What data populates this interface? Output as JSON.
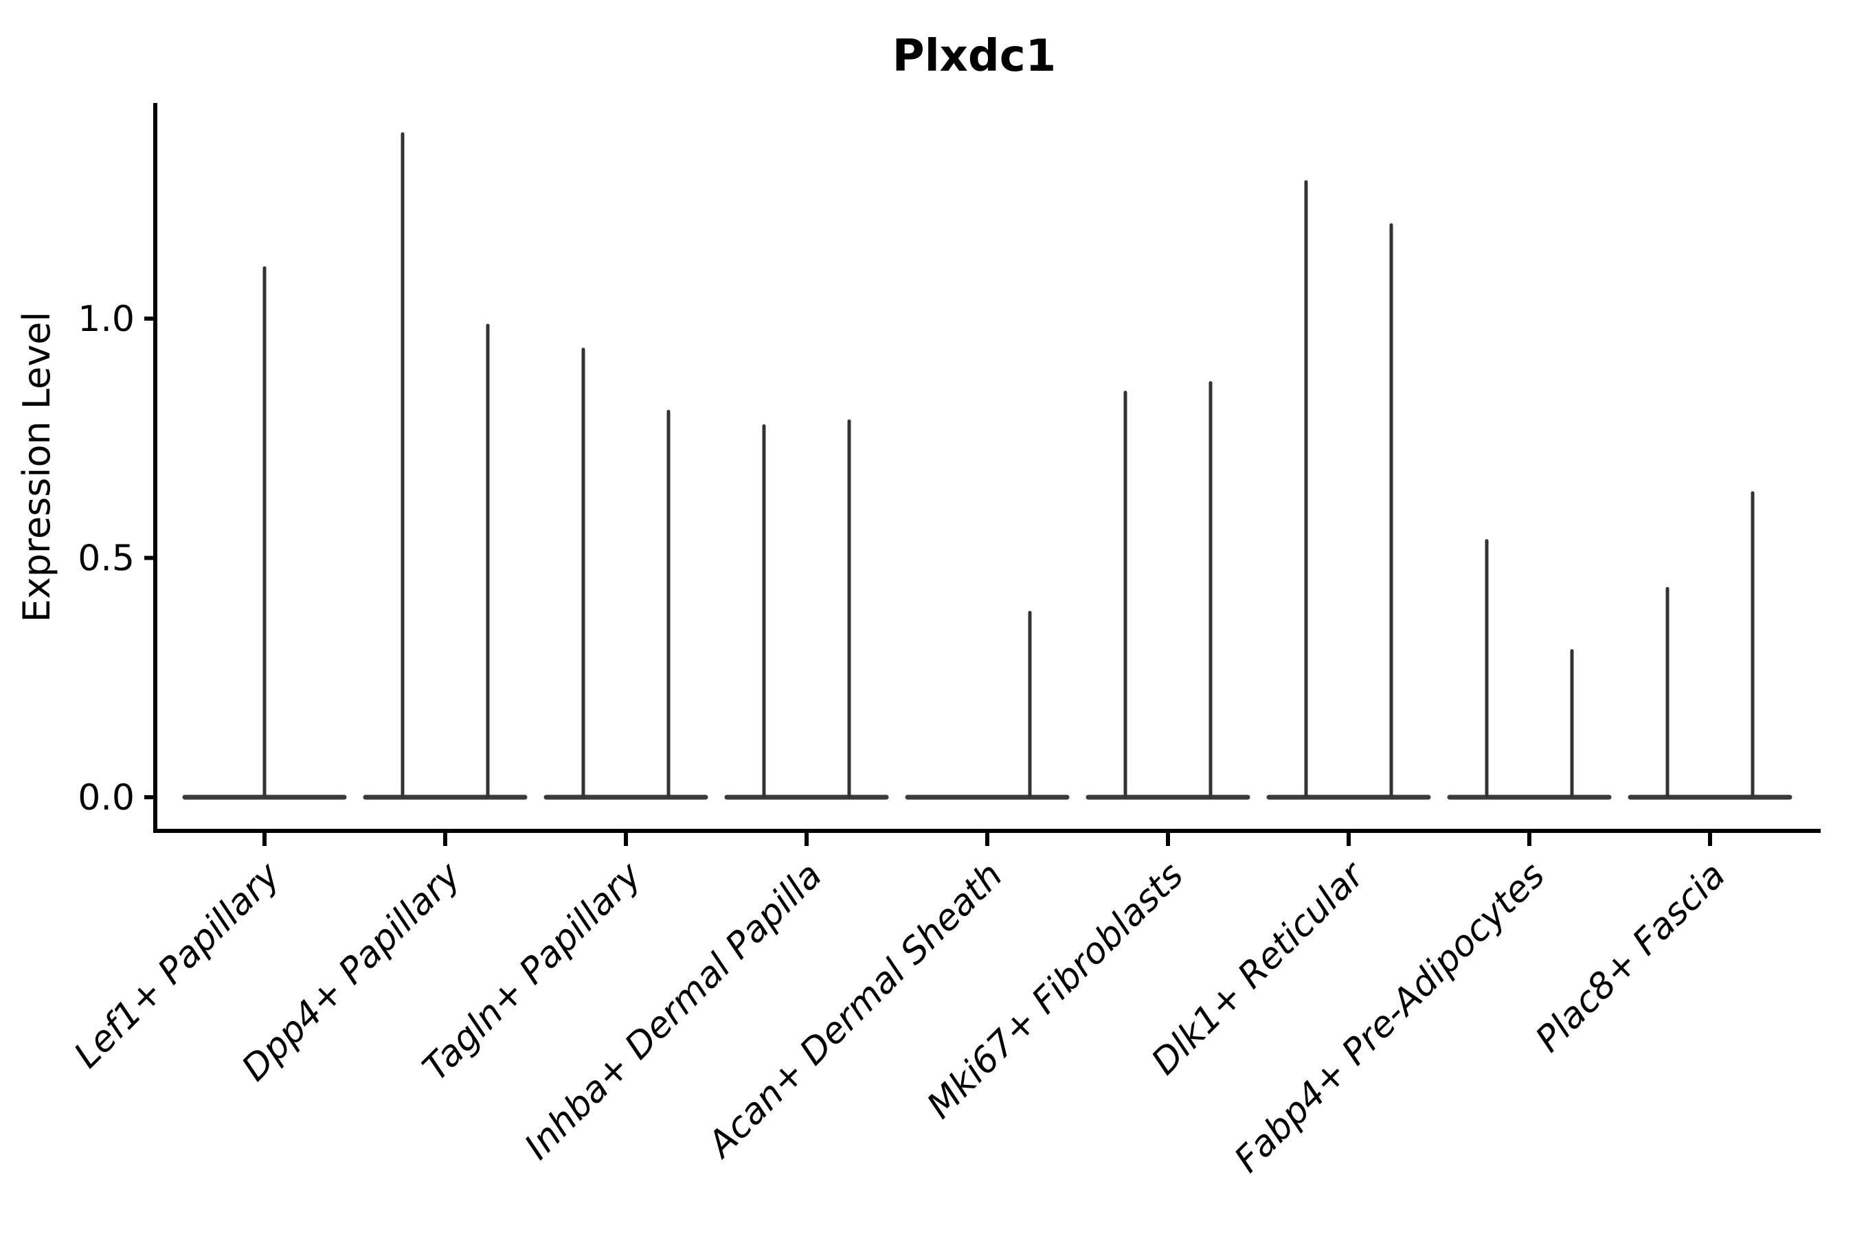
{
  "chart_data": {
    "type": "violin",
    "title": "Plxdc1",
    "ylabel": "Expression Level",
    "xlabel": "",
    "ylim": [
      -0.07,
      1.45
    ],
    "grid": false,
    "legend": "none",
    "axis_color": "#000000",
    "violin_color": "#333333",
    "violin_base_color": "#3a3a3a",
    "yticks": [
      {
        "value": 0.0,
        "label": "0.0"
      },
      {
        "value": 0.5,
        "label": "0.5"
      },
      {
        "value": 1.0,
        "label": "1.0"
      }
    ],
    "categories": [
      {
        "label": "Lef1+ Papillary",
        "violin_max": [
          1.11
        ]
      },
      {
        "label": "Dpp4+ Papillary",
        "violin_max": [
          1.39,
          0.99
        ]
      },
      {
        "label": "Tagln+ Papillary",
        "violin_max": [
          0.94,
          0.81
        ]
      },
      {
        "label": "Inhba+ Dermal Papilla",
        "violin_max": [
          0.78,
          0.79
        ]
      },
      {
        "label": "Acan+ Dermal Sheath",
        "violin_max": [
          0.0,
          0.39
        ]
      },
      {
        "label": "Mki67+ Fibroblasts",
        "violin_max": [
          0.85,
          0.87
        ]
      },
      {
        "label": "Dlk1+ Reticular",
        "violin_max": [
          1.29,
          1.2
        ]
      },
      {
        "label": "Fabp4+ Pre-Adipocytes",
        "violin_max": [
          0.54,
          0.31
        ]
      },
      {
        "label": "Plac8+ Fascia",
        "violin_max": [
          0.44,
          0.64
        ]
      }
    ]
  }
}
